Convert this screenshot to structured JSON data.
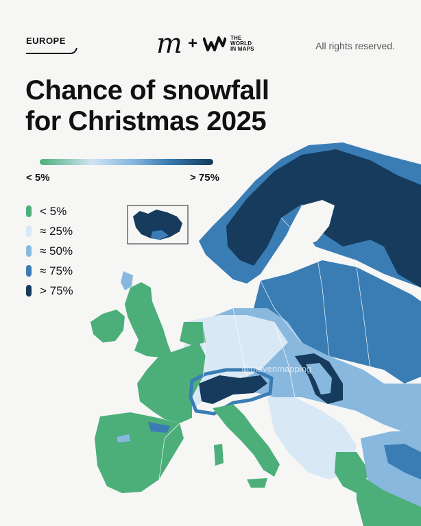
{
  "header": {
    "region_tag": "EUROPE",
    "brand_logo_text": "THE WORLD IN MAPS",
    "plus_sign": "+",
    "rights": "All rights reserved."
  },
  "title": {
    "line1": "Chance of snowfall",
    "line2": "for Christmas 2025"
  },
  "gradient_scale": {
    "min_label": "< 5%",
    "max_label": "> 75%"
  },
  "legend": [
    {
      "label": "< 5%",
      "color": "#4caf7a"
    },
    {
      "label": "≈ 25%",
      "color": "#d8e8f5"
    },
    {
      "label": "≈ 50%",
      "color": "#89b8de"
    },
    {
      "label": "≈ 75%",
      "color": "#3a7db4"
    },
    {
      "label": "> 75%",
      "color": "#163b5c"
    }
  ],
  "map": {
    "watermark": "@mavenmapping",
    "colors": {
      "lt5": "#4caf7a",
      "p25": "#d8e8f5",
      "p50": "#89b8de",
      "p75": "#3a7db4",
      "gt75": "#163b5c",
      "border": "#ffffff"
    }
  }
}
